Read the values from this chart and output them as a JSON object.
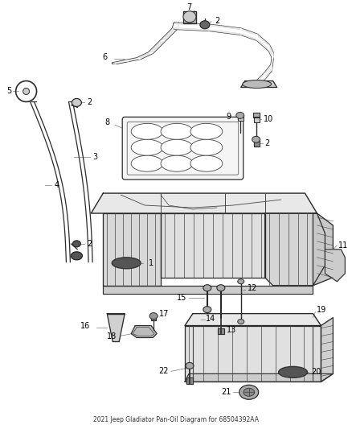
{
  "title": "2021 Jeep Gladiator Pan-Oil Diagram for 68504392AA",
  "background_color": "#ffffff",
  "fig_width": 4.38,
  "fig_height": 5.33,
  "dpi": 100,
  "line_color": "#2a2a2a",
  "label_fontsize": 7.0,
  "sketch_color": "#444444",
  "light_gray": "#cccccc",
  "mid_gray": "#888888"
}
